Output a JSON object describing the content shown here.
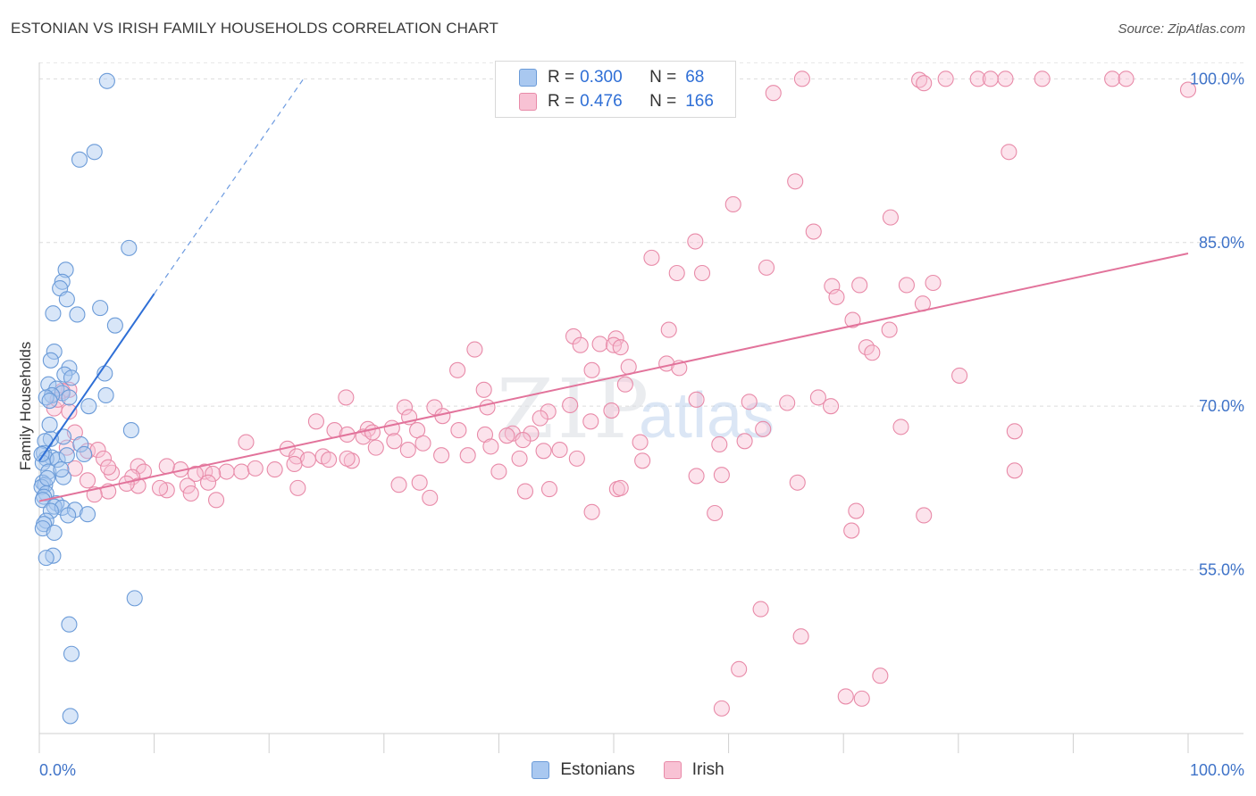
{
  "title": "ESTONIAN VS IRISH FAMILY HOUSEHOLDS CORRELATION CHART",
  "source": "Source: ZipAtlas.com",
  "watermark": {
    "zip": "ZIP",
    "atlas": "atlas"
  },
  "legend": {
    "rows": [
      {
        "r_label": "R =",
        "r_value": "0.300",
        "n_label": "N =",
        "n_value": "68",
        "color": "#a9c8f0",
        "border": "#6b9bd8"
      },
      {
        "r_label": "R =",
        "r_value": "0.476",
        "n_label": "N =",
        "n_value": "166",
        "color": "#f8c2d4",
        "border": "#e88aa8"
      }
    ],
    "bottom": [
      {
        "label": "Estonians",
        "color": "#a9c8f0",
        "border": "#6b9bd8"
      },
      {
        "label": "Irish",
        "color": "#f8c2d4",
        "border": "#e88aa8"
      }
    ]
  },
  "chart_data": {
    "type": "scatter",
    "title": "ESTONIAN VS IRISH FAMILY HOUSEHOLDS CORRELATION CHART",
    "xlabel": "",
    "ylabel": "Family Households",
    "xlim": [
      0,
      100
    ],
    "ylim": [
      40,
      101.5
    ],
    "x_tick_labels": [
      "0.0%",
      "100.0%"
    ],
    "y_ticks": [
      55,
      70,
      85,
      100
    ],
    "y_tick_labels": [
      "55.0%",
      "70.0%",
      "85.0%",
      "100.0%"
    ],
    "grid": true,
    "series": [
      {
        "name": "Estonians",
        "color": "#6b9bd8",
        "fill": "rgba(169,200,240,0.45)",
        "trend": {
          "x0": 0,
          "y0": 65,
          "x1": 10,
          "y1": 80.3,
          "dash_to_x": 23,
          "dash_to_y": 100
        },
        "points": [
          [
            5.9,
            99.8
          ],
          [
            4.8,
            93.3
          ],
          [
            3.5,
            92.6
          ],
          [
            7.8,
            84.5
          ],
          [
            2.3,
            82.5
          ],
          [
            2.0,
            81.4
          ],
          [
            1.8,
            80.8
          ],
          [
            2.4,
            79.8
          ],
          [
            1.2,
            78.5
          ],
          [
            5.3,
            79.0
          ],
          [
            3.3,
            78.4
          ],
          [
            6.6,
            77.4
          ],
          [
            1.3,
            75.0
          ],
          [
            1.0,
            74.2
          ],
          [
            2.6,
            73.5
          ],
          [
            2.2,
            72.9
          ],
          [
            2.8,
            72.6
          ],
          [
            5.7,
            73.0
          ],
          [
            0.8,
            72.0
          ],
          [
            1.5,
            71.6
          ],
          [
            2.0,
            71.2
          ],
          [
            1.1,
            71.0
          ],
          [
            0.6,
            70.8
          ],
          [
            2.6,
            70.8
          ],
          [
            5.8,
            71.0
          ],
          [
            4.3,
            70.0
          ],
          [
            0.9,
            70.5
          ],
          [
            8.0,
            67.8
          ],
          [
            2.1,
            67.2
          ],
          [
            1.0,
            67.0
          ],
          [
            0.5,
            66.8
          ],
          [
            3.6,
            66.5
          ],
          [
            0.4,
            65.7
          ],
          [
            1.1,
            65.3
          ],
          [
            0.6,
            65.2
          ],
          [
            1.6,
            65.1
          ],
          [
            2.4,
            65.5
          ],
          [
            3.9,
            65.6
          ],
          [
            0.3,
            64.8
          ],
          [
            0.8,
            64.0
          ],
          [
            2.1,
            63.5
          ],
          [
            0.3,
            63.0
          ],
          [
            0.5,
            62.8
          ],
          [
            0.2,
            62.6
          ],
          [
            0.6,
            62.0
          ],
          [
            0.4,
            61.7
          ],
          [
            0.3,
            61.4
          ],
          [
            1.5,
            61.1
          ],
          [
            1.3,
            60.8
          ],
          [
            2.0,
            60.7
          ],
          [
            3.1,
            60.5
          ],
          [
            1.0,
            60.4
          ],
          [
            2.5,
            60.0
          ],
          [
            4.2,
            60.1
          ],
          [
            0.6,
            59.5
          ],
          [
            0.4,
            59.2
          ],
          [
            0.3,
            58.8
          ],
          [
            1.3,
            58.4
          ],
          [
            1.2,
            56.3
          ],
          [
            0.6,
            56.1
          ],
          [
            8.3,
            52.4
          ],
          [
            2.6,
            50.0
          ],
          [
            2.8,
            47.3
          ],
          [
            2.7,
            41.6
          ],
          [
            0.2,
            65.6
          ],
          [
            0.7,
            63.4
          ],
          [
            1.9,
            64.2
          ],
          [
            0.9,
            68.3
          ]
        ]
      },
      {
        "name": "Irish",
        "color": "#e88aa8",
        "fill": "rgba(248,194,212,0.45)",
        "trend": {
          "x0": 0,
          "y0": 61.3,
          "x1": 100,
          "y1": 84.0
        },
        "points": [
          [
            66.4,
            100
          ],
          [
            76.6,
            99.9
          ],
          [
            77.0,
            99.6
          ],
          [
            78.9,
            100
          ],
          [
            81.7,
            100
          ],
          [
            82.8,
            100
          ],
          [
            84.1,
            100
          ],
          [
            87.3,
            100
          ],
          [
            93.4,
            100
          ],
          [
            94.6,
            100
          ],
          [
            100,
            99
          ],
          [
            63.9,
            98.7
          ],
          [
            84.4,
            93.3
          ],
          [
            65.8,
            90.6
          ],
          [
            60.4,
            88.5
          ],
          [
            74.1,
            87.3
          ],
          [
            67.4,
            86.0
          ],
          [
            57.1,
            85.1
          ],
          [
            53.3,
            83.6
          ],
          [
            63.3,
            82.7
          ],
          [
            55.5,
            82.2
          ],
          [
            57.7,
            82.2
          ],
          [
            71.4,
            81.1
          ],
          [
            75.5,
            81.1
          ],
          [
            69.0,
            81.0
          ],
          [
            77.8,
            81.3
          ],
          [
            69.4,
            80.0
          ],
          [
            76.9,
            79.4
          ],
          [
            70.8,
            77.9
          ],
          [
            54.8,
            77.0
          ],
          [
            74.0,
            77.0
          ],
          [
            46.5,
            76.4
          ],
          [
            50.2,
            76.2
          ],
          [
            48.8,
            75.7
          ],
          [
            47.1,
            75.6
          ],
          [
            50.0,
            75.6
          ],
          [
            50.6,
            75.4
          ],
          [
            72.0,
            75.4
          ],
          [
            72.5,
            74.9
          ],
          [
            37.9,
            75.2
          ],
          [
            54.6,
            73.9
          ],
          [
            48.1,
            73.3
          ],
          [
            51.3,
            73.6
          ],
          [
            55.7,
            73.5
          ],
          [
            36.4,
            73.3
          ],
          [
            80.1,
            72.8
          ],
          [
            51.0,
            72.0
          ],
          [
            38.7,
            71.5
          ],
          [
            57.2,
            70.6
          ],
          [
            26.7,
            70.8
          ],
          [
            61.8,
            70.4
          ],
          [
            65.1,
            70.3
          ],
          [
            67.8,
            70.8
          ],
          [
            68.9,
            70.0
          ],
          [
            46.2,
            70.1
          ],
          [
            31.8,
            69.9
          ],
          [
            34.4,
            69.9
          ],
          [
            39.0,
            69.9
          ],
          [
            44.3,
            69.5
          ],
          [
            49.8,
            69.6
          ],
          [
            35.1,
            69.1
          ],
          [
            48.0,
            68.6
          ],
          [
            24.1,
            68.6
          ],
          [
            63.0,
            67.9
          ],
          [
            75.0,
            68.1
          ],
          [
            84.9,
            67.7
          ],
          [
            25.7,
            67.8
          ],
          [
            28.6,
            67.9
          ],
          [
            30.7,
            68.0
          ],
          [
            32.9,
            67.8
          ],
          [
            36.5,
            67.8
          ],
          [
            26.8,
            67.4
          ],
          [
            28.2,
            67.2
          ],
          [
            29.0,
            67.6
          ],
          [
            38.8,
            67.4
          ],
          [
            41.2,
            67.5
          ],
          [
            40.7,
            67.3
          ],
          [
            42.8,
            67.5
          ],
          [
            30.9,
            66.8
          ],
          [
            33.4,
            66.6
          ],
          [
            42.1,
            66.9
          ],
          [
            52.3,
            66.7
          ],
          [
            18.0,
            66.7
          ],
          [
            29.3,
            66.2
          ],
          [
            32.1,
            66.0
          ],
          [
            43.9,
            65.9
          ],
          [
            45.3,
            66.0
          ],
          [
            59.2,
            66.5
          ],
          [
            21.6,
            66.1
          ],
          [
            22.4,
            65.4
          ],
          [
            23.4,
            65.1
          ],
          [
            24.7,
            65.4
          ],
          [
            27.2,
            65.0
          ],
          [
            25.2,
            65.1
          ],
          [
            26.8,
            65.2
          ],
          [
            35.0,
            65.5
          ],
          [
            37.3,
            65.5
          ],
          [
            46.8,
            65.2
          ],
          [
            22.2,
            64.7
          ],
          [
            20.5,
            64.2
          ],
          [
            12.3,
            64.2
          ],
          [
            16.3,
            64.0
          ],
          [
            14.4,
            64.0
          ],
          [
            15.1,
            63.8
          ],
          [
            17.6,
            64.0
          ],
          [
            18.8,
            64.3
          ],
          [
            11.1,
            64.5
          ],
          [
            8.6,
            64.5
          ],
          [
            9.1,
            64.0
          ],
          [
            8.1,
            63.5
          ],
          [
            13.6,
            63.8
          ],
          [
            6.3,
            63.9
          ],
          [
            40.0,
            64.0
          ],
          [
            57.2,
            63.6
          ],
          [
            59.4,
            63.7
          ],
          [
            84.9,
            64.1
          ],
          [
            14.7,
            63.0
          ],
          [
            31.3,
            62.8
          ],
          [
            33.1,
            63.0
          ],
          [
            12.9,
            62.7
          ],
          [
            11.1,
            62.3
          ],
          [
            8.6,
            62.7
          ],
          [
            6.0,
            62.2
          ],
          [
            42.3,
            62.2
          ],
          [
            44.4,
            62.4
          ],
          [
            50.3,
            62.4
          ],
          [
            50.6,
            62.5
          ],
          [
            22.5,
            62.5
          ],
          [
            13.2,
            62.0
          ],
          [
            15.4,
            61.4
          ],
          [
            34.0,
            61.6
          ],
          [
            48.1,
            60.3
          ],
          [
            58.8,
            60.2
          ],
          [
            71.1,
            60.4
          ],
          [
            77.0,
            60.0
          ],
          [
            62.8,
            51.4
          ],
          [
            66.3,
            48.9
          ],
          [
            60.9,
            45.9
          ],
          [
            73.2,
            45.3
          ],
          [
            70.2,
            43.4
          ],
          [
            71.6,
            43.2
          ],
          [
            59.4,
            42.3
          ],
          [
            66.0,
            63.0
          ],
          [
            70.7,
            58.6
          ],
          [
            61.4,
            66.8
          ],
          [
            52.5,
            65.0
          ],
          [
            39.3,
            66.3
          ],
          [
            41.8,
            65.2
          ],
          [
            32.2,
            69.0
          ],
          [
            43.6,
            68.9
          ],
          [
            2.6,
            71.5
          ],
          [
            2.6,
            69.5
          ],
          [
            3.1,
            67.6
          ],
          [
            2.4,
            66.2
          ],
          [
            4.2,
            65.9
          ],
          [
            5.1,
            66.0
          ],
          [
            5.6,
            65.2
          ],
          [
            3.1,
            64.3
          ],
          [
            6.0,
            64.4
          ],
          [
            4.2,
            63.2
          ],
          [
            7.6,
            62.9
          ],
          [
            10.5,
            62.5
          ],
          [
            4.8,
            61.9
          ],
          [
            1.3,
            69.8
          ],
          [
            2.0,
            71.4
          ],
          [
            1.6,
            70.6
          ]
        ]
      }
    ]
  }
}
